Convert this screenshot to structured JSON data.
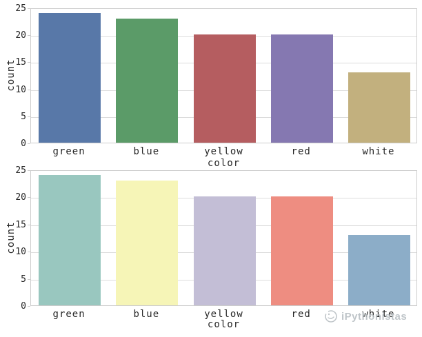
{
  "figure": {
    "background": "#ffffff"
  },
  "style": {
    "grid_color": "#dcdcdc",
    "spine_color": "#cccccc",
    "text_color": "#262626"
  },
  "watermark": {
    "text": "iPythonistas",
    "icon": "python-circle-logo",
    "color": "#b7bec2"
  },
  "chart_data": [
    {
      "type": "bar",
      "title": "",
      "categories": [
        "green",
        "blue",
        "yellow",
        "red",
        "white"
      ],
      "values": [
        24,
        23,
        20,
        20,
        13
      ],
      "xlabel": "color",
      "ylabel": "count",
      "ylim": [
        0,
        25
      ],
      "yticks": [
        0,
        5,
        10,
        15,
        20,
        25
      ],
      "grid": "horizontal",
      "legend": "none",
      "bar_colors": [
        "#5878a8",
        "#5b9b68",
        "#b55d60",
        "#8578b1",
        "#c2b07e"
      ]
    },
    {
      "type": "bar",
      "title": "",
      "categories": [
        "green",
        "blue",
        "yellow",
        "red",
        "white"
      ],
      "values": [
        24,
        23,
        20,
        20,
        13
      ],
      "xlabel": "color",
      "ylabel": "count",
      "ylim": [
        0,
        25
      ],
      "yticks": [
        0,
        5,
        10,
        15,
        20,
        25
      ],
      "grid": "horizontal",
      "legend": "none",
      "bar_colors": [
        "#99c7bf",
        "#f6f5b7",
        "#c3bed6",
        "#ee8d81",
        "#8cadc8"
      ]
    }
  ]
}
